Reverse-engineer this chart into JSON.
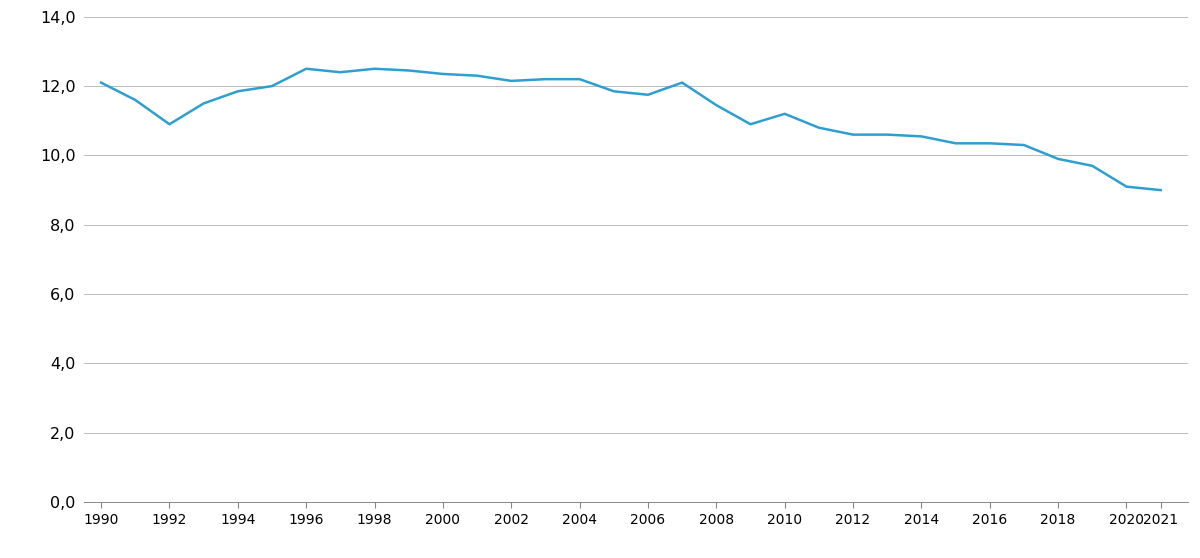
{
  "years": [
    1990,
    1991,
    1992,
    1993,
    1994,
    1995,
    1996,
    1997,
    1998,
    1999,
    2000,
    2001,
    2002,
    2003,
    2004,
    2005,
    2006,
    2007,
    2008,
    2009,
    2010,
    2011,
    2012,
    2013,
    2014,
    2015,
    2016,
    2017,
    2018,
    2019,
    2020,
    2021
  ],
  "values": [
    12.1,
    11.6,
    10.9,
    11.5,
    11.85,
    12.0,
    12.5,
    12.4,
    12.5,
    12.45,
    12.35,
    12.3,
    12.15,
    12.2,
    12.2,
    11.85,
    11.75,
    12.1,
    11.45,
    10.9,
    11.2,
    10.8,
    10.6,
    10.6,
    10.55,
    10.35,
    10.35,
    10.3,
    9.9,
    9.7,
    9.1,
    9.0
  ],
  "line_color": "#2E9FD0",
  "line_width": 1.8,
  "ylim": [
    0,
    14.0
  ],
  "yticks": [
    0.0,
    2.0,
    4.0,
    6.0,
    8.0,
    10.0,
    12.0,
    14.0
  ],
  "ytick_labels": [
    "0,0",
    "2,0",
    "4,0",
    "6,0",
    "8,0",
    "10,0",
    "12,0",
    "14,0"
  ],
  "xticks": [
    1990,
    1992,
    1994,
    1996,
    1998,
    2000,
    2002,
    2004,
    2006,
    2008,
    2010,
    2012,
    2014,
    2016,
    2018,
    2020,
    2021
  ],
  "xtick_labels": [
    "1990",
    "1992",
    "1994",
    "1996",
    "1998",
    "2000",
    "2002",
    "2004",
    "2006",
    "2008",
    "2010",
    "2012",
    "2014",
    "2016",
    "2018",
    "2020",
    "2021"
  ],
  "xlim_left": 1989.5,
  "xlim_right": 2021.8,
  "grid_color": "#b0b0b0",
  "grid_linewidth": 0.6,
  "background_color": "#ffffff",
  "tick_fontsize": 11.5,
  "spine_color": "#888888"
}
